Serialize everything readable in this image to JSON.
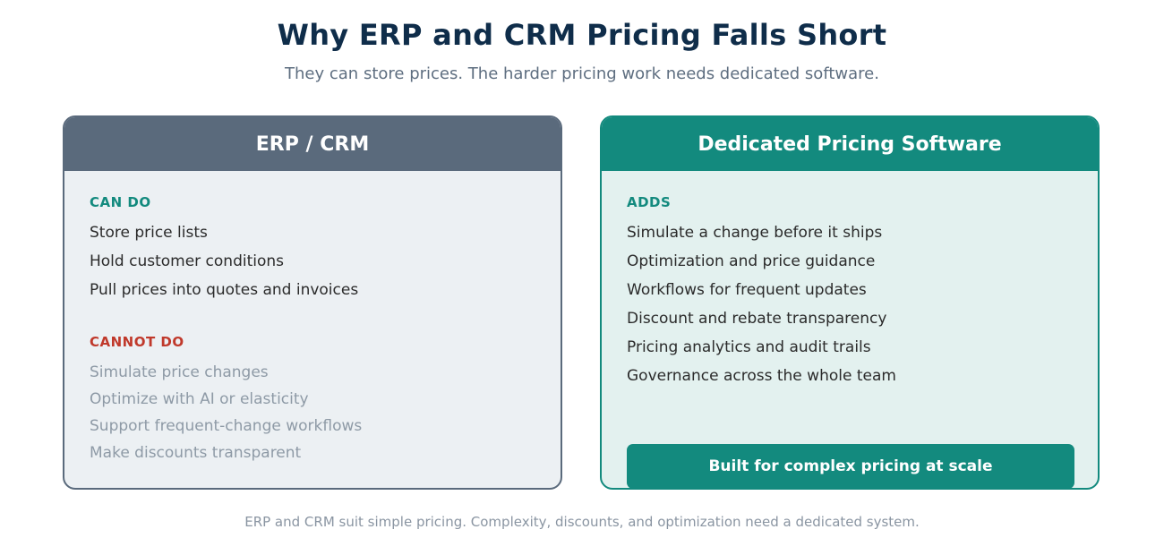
{
  "title": "Why ERP and CRM Pricing Falls Short",
  "subtitle": "They can store prices. The harder pricing work needs dedicated software.",
  "left_card": {
    "header": "ERP / CRM",
    "can_label": "CAN DO",
    "can_items": [
      "Store price lists",
      "Hold customer conditions",
      "Pull prices into quotes and invoices"
    ],
    "cannot_label": "CANNOT DO",
    "cannot_items": [
      "Simulate price changes",
      "Optimize with AI or elasticity",
      "Support frequent-change workflows",
      "Make discounts transparent"
    ]
  },
  "right_card": {
    "header": "Dedicated Pricing Software",
    "adds_label": "ADDS",
    "adds_items": [
      "Simulate a change before it ships",
      "Optimization and price guidance",
      "Workflows for frequent updates",
      "Discount and rebate transparency",
      "Pricing analytics and audit trails",
      "Governance across the whole team"
    ],
    "cta_label": "Built for complex pricing at scale"
  },
  "footer": "ERP and CRM suit simple pricing. Complexity, discounts, and optimization need a dedicated system.",
  "colors": {
    "title": "#0f2d4a",
    "erp_header": "#5a6a7c",
    "pricing_header": "#138a7e",
    "cannot": "#c0392b"
  }
}
